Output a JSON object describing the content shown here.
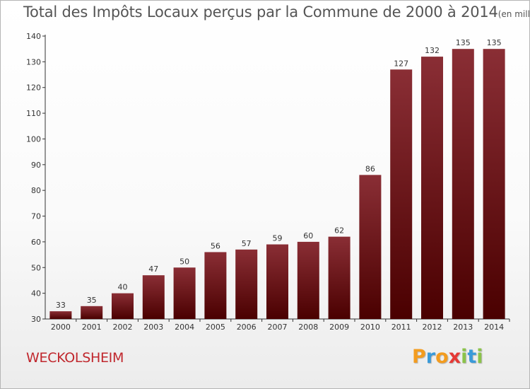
{
  "chart_data": {
    "type": "bar",
    "title": "Total des Impôts Locaux perçus par la Commune de 2000 à 2014",
    "unit": "(en milliers d'€)",
    "categories": [
      "2000",
      "2001",
      "2002",
      "2003",
      "2004",
      "2005",
      "2006",
      "2007",
      "2008",
      "2009",
      "2010",
      "2011",
      "2012",
      "2013",
      "2014"
    ],
    "values": [
      33,
      35,
      40,
      47,
      50,
      56,
      57,
      59,
      60,
      62,
      86,
      127,
      132,
      135,
      135
    ],
    "ylim": [
      30,
      140
    ],
    "yticks": [
      30,
      40,
      50,
      60,
      70,
      80,
      90,
      100,
      110,
      120,
      130,
      140
    ],
    "xlabel": "",
    "ylabel": "",
    "grid": false,
    "bar_color_top": "#8a2e35",
    "bar_color_bottom": "#4a0000"
  },
  "commune": "WECKOLSHEIM",
  "logo": {
    "letters": [
      {
        "ch": "P",
        "color": "#f39c1f"
      },
      {
        "ch": "r",
        "color": "#3a9ad9"
      },
      {
        "ch": "o",
        "color": "#f39c1f"
      },
      {
        "ch": "x",
        "color": "#e53935"
      },
      {
        "ch": "i",
        "color": "#8bc34a"
      },
      {
        "ch": "t",
        "color": "#3a9ad9"
      },
      {
        "ch": "i",
        "color": "#8bc34a"
      }
    ]
  }
}
